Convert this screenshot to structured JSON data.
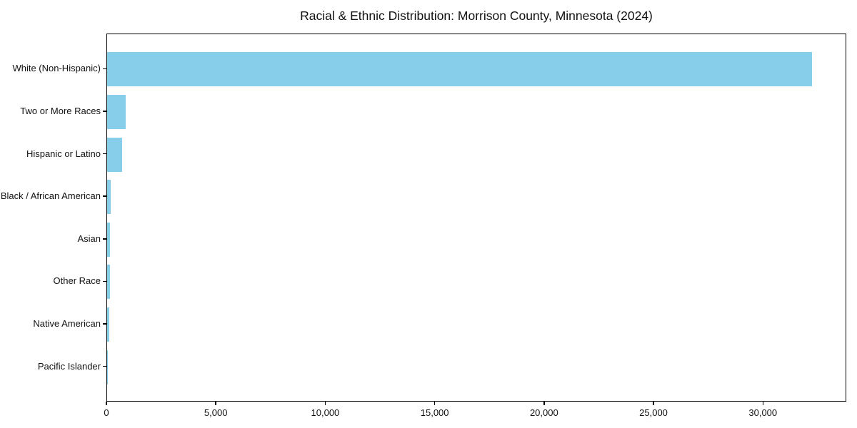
{
  "chart_data": {
    "type": "bar",
    "orientation": "horizontal",
    "title": "Racial & Ethnic Distribution: Morrison County, Minnesota (2024)",
    "xlabel": "",
    "ylabel": "",
    "categories": [
      "White (Non-Hispanic)",
      "Two or More Races",
      "Hispanic or Latino",
      "Black / African American",
      "Asian",
      "Other Race",
      "Native American",
      "Pacific Islander"
    ],
    "values": [
      32200,
      840,
      670,
      150,
      125,
      115,
      90,
      15
    ],
    "xlim": [
      0,
      33810
    ],
    "x_ticks": [
      0,
      5000,
      10000,
      15000,
      20000,
      25000,
      30000
    ],
    "x_tick_labels": [
      "0",
      "5,000",
      "10,000",
      "15,000",
      "20,000",
      "25,000",
      "30,000"
    ],
    "bar_color": "#87CEEB",
    "grid": false,
    "legend_position": "none",
    "background_color": "#ffffff",
    "frame": "full-box"
  }
}
